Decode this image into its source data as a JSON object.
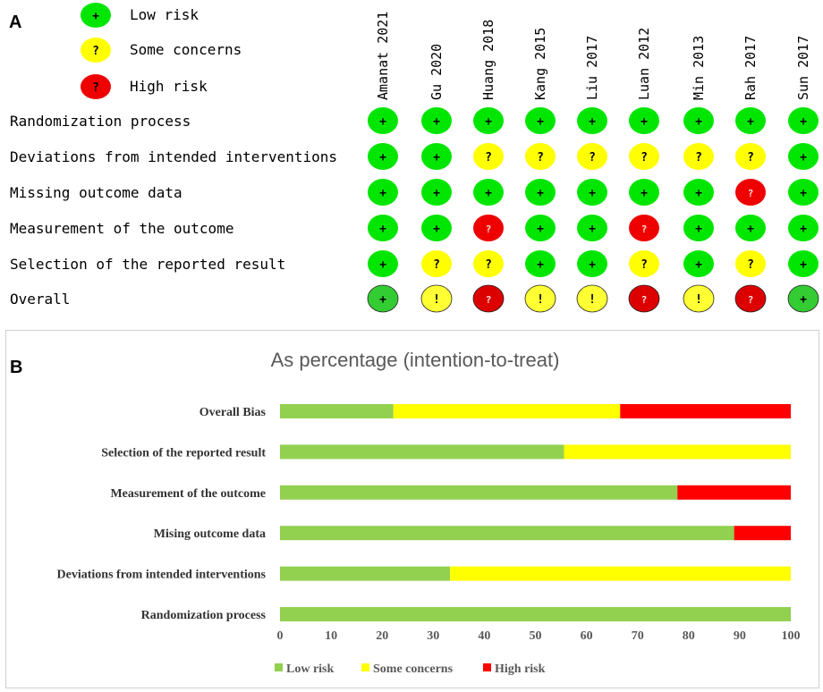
{
  "panel_a": {
    "letter": "A",
    "legend": [
      {
        "key": "low",
        "symbol": "+",
        "label": "Low risk"
      },
      {
        "key": "some",
        "symbol": "?",
        "label": "Some concerns"
      },
      {
        "key": "high",
        "symbol": "?",
        "label": "High risk"
      }
    ],
    "studies": [
      "Amanat 2021",
      "Gu 2020",
      "Huang 2018",
      "Kang 2015",
      "Liu 2017",
      "Luan 2012",
      "Min 2013",
      "Rah 2017",
      "Sun 2017"
    ],
    "domains": [
      "Randomization process",
      "Deviations from intended interventions",
      "Missing outcome data",
      "Measurement of the outcome",
      "Selection of the reported result",
      "Overall"
    ],
    "judgements": [
      [
        "low",
        "low",
        "low",
        "low",
        "low",
        "low",
        "low",
        "low",
        "low"
      ],
      [
        "low",
        "low",
        "some",
        "some",
        "some",
        "some",
        "some",
        "some",
        "low"
      ],
      [
        "low",
        "low",
        "low",
        "low",
        "low",
        "low",
        "low",
        "high",
        "low"
      ],
      [
        "low",
        "low",
        "high",
        "low",
        "low",
        "high",
        "low",
        "low",
        "low"
      ],
      [
        "low",
        "some",
        "some",
        "low",
        "low",
        "some",
        "low",
        "some",
        "low"
      ],
      [
        "low",
        "some",
        "high",
        "some",
        "some",
        "high",
        "some",
        "high",
        "low"
      ]
    ],
    "symbols": {
      "low": "+",
      "some": "?",
      "high": "?",
      "overall_some": "!"
    },
    "colors": {
      "low": "#00e600",
      "some": "#ffff00",
      "high": "#ee0000",
      "overall_low": "#33cc33",
      "overall_some": "#ffff33",
      "overall_high": "#dd0000"
    }
  },
  "panel_b": {
    "letter": "B"
  },
  "chart_data": {
    "type": "bar",
    "orientation": "horizontal",
    "stacked": true,
    "title": "As percentage (intention-to-treat)",
    "categories": [
      "Overall Bias",
      "Selection of the reported result",
      "Measurement of the outcome",
      "Mising outcome data",
      "Deviations from intended interventions",
      "Randomization process"
    ],
    "series": [
      {
        "name": "Low risk",
        "color": "#92d050",
        "values": [
          22.2,
          55.6,
          77.8,
          88.9,
          33.3,
          100
        ]
      },
      {
        "name": "Some concerns",
        "color": "#ffff00",
        "values": [
          44.4,
          44.4,
          0,
          0,
          66.7,
          0
        ]
      },
      {
        "name": "High risk",
        "color": "#ff0000",
        "values": [
          33.4,
          0,
          22.2,
          11.1,
          0,
          0
        ]
      }
    ],
    "xlim": [
      0,
      100
    ],
    "xticks": [
      0,
      10,
      20,
      30,
      40,
      50,
      60,
      70,
      80,
      90,
      100
    ],
    "legend_position": "bottom"
  }
}
